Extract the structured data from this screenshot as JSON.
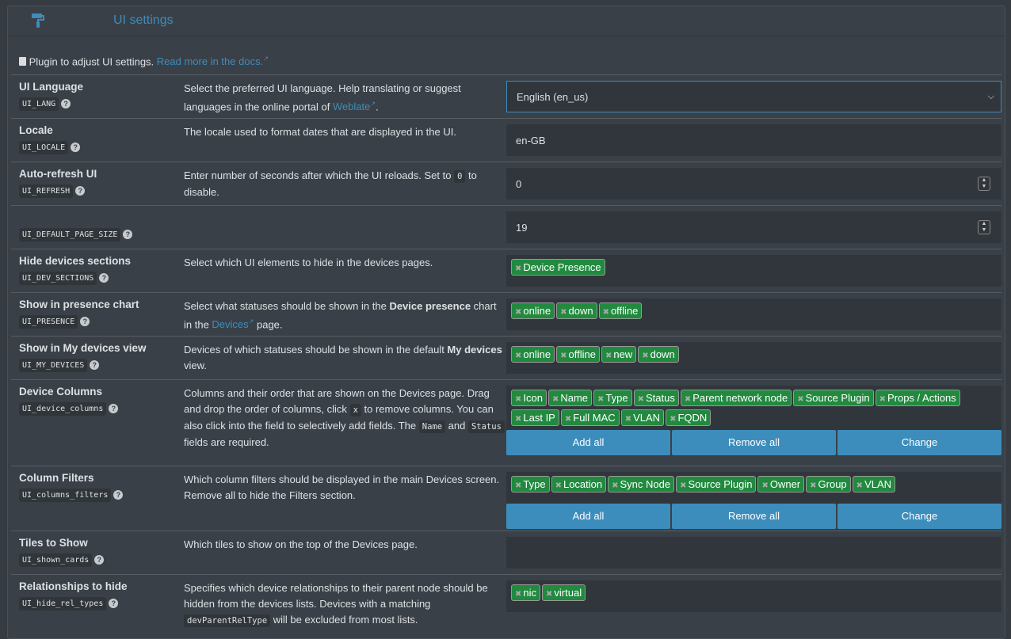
{
  "header": {
    "title": "UI settings",
    "icon": "paint-roller-icon"
  },
  "intro": {
    "text": "Plugin to adjust UI settings. ",
    "link": "Read more in the docs.",
    "ext": "↗"
  },
  "buttons": {
    "add_all": "Add all",
    "remove_all": "Remove all",
    "change": "Change"
  },
  "rows": [
    {
      "name": "UI Language",
      "code": "UI_LANG",
      "desc_pre": "Select the preferred UI language. Help translating or suggest languages in the online portal of ",
      "desc_link": "Weblate",
      "desc_post": ".",
      "value": "English (en_us)"
    },
    {
      "name": "Locale",
      "code": "UI_LOCALE",
      "desc": "The locale used to format dates that are displayed in the UI.",
      "value": "en-GB"
    },
    {
      "name": "Auto-refresh UI",
      "code": "UI_REFRESH",
      "desc_pre": "Enter number of seconds after which the UI reloads. Set to ",
      "desc_code": "0",
      "desc_post": " to disable.",
      "value": "0"
    },
    {
      "name": "",
      "code": "UI_DEFAULT_PAGE_SIZE",
      "value": "19"
    },
    {
      "name": "Hide devices sections",
      "code": "UI_DEV_SECTIONS",
      "desc": "Select which UI elements to hide in the devices pages.",
      "tags": [
        "Device Presence"
      ]
    },
    {
      "name": "Show in presence chart",
      "code": "UI_PRESENCE",
      "desc_pre": "Select what statuses should be shown in the ",
      "desc_bold": "Device presence",
      "desc_mid": " chart in the ",
      "desc_link": "Devices",
      "desc_post": " page.",
      "tags": [
        "online",
        "down",
        "offline"
      ]
    },
    {
      "name": "Show in My devices view",
      "code": "UI_MY_DEVICES",
      "desc_pre": "Devices of which statuses should be shown in the default ",
      "desc_bold": "My devices",
      "desc_post": " view.",
      "tags": [
        "online",
        "offline",
        "new",
        "down"
      ]
    },
    {
      "name": "Device Columns",
      "code": "UI_device_columns",
      "desc_a": "Columns and their order that are shown on the Devices page. Drag and drop the order of columns, click ",
      "desc_code1": "x",
      "desc_b": " to remove columns. You can also click into the field to selectively add fields. The ",
      "desc_code2": "Name",
      "desc_c": " and ",
      "desc_code3": "Status",
      "desc_d": " fields are required.",
      "tags": [
        "Icon",
        "Name",
        "Type",
        "Status",
        "Parent network node",
        "Source Plugin",
        "Props / Actions",
        "Last IP",
        "Full MAC",
        "VLAN",
        "FQDN"
      ]
    },
    {
      "name": "Column Filters",
      "code": "UI_columns_filters",
      "desc": "Which column filters should be displayed in the main Devices screen. Remove all to hide the Filters section.",
      "tags": [
        "Type",
        "Location",
        "Sync Node",
        "Source Plugin",
        "Owner",
        "Group",
        "VLAN"
      ]
    },
    {
      "name": "Tiles to Show",
      "code": "UI_shown_cards",
      "desc": "Which tiles to show on the top of the Devices page.",
      "tags": []
    },
    {
      "name": "Relationships to hide",
      "code": "UI_hide_rel_types",
      "desc_pre": "Specifies which device relationships to their parent node should be hidden from the devices lists. Devices with a matching ",
      "desc_code": "devParentRelType",
      "desc_post": " will be excluded from most lists.",
      "tags": [
        "nic",
        "virtual"
      ]
    }
  ]
}
